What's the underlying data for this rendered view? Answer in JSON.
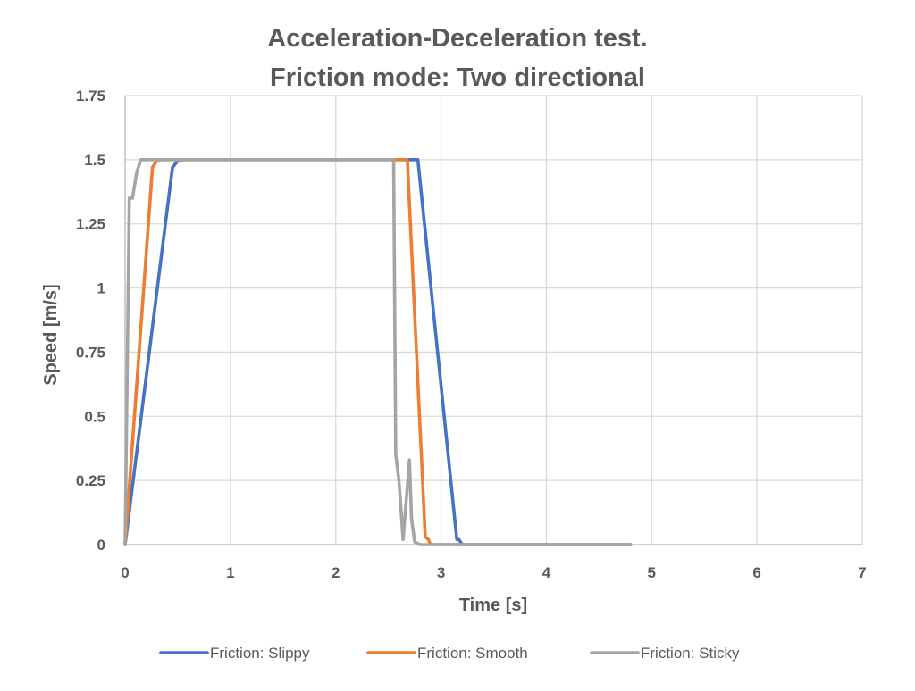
{
  "chart_data": {
    "type": "line",
    "title_lines": [
      "Acceleration-Deceleration test.",
      "Friction mode: Two directional"
    ],
    "xlabel": "Time [s]",
    "ylabel": "Speed [m/s]",
    "xlim": [
      0,
      7
    ],
    "ylim": [
      0,
      1.75
    ],
    "x_ticks": [
      0,
      1,
      2,
      3,
      4,
      5,
      6,
      7
    ],
    "x_tick_labels": [
      "0",
      "1",
      "2",
      "3",
      "4",
      "5",
      "6",
      "7"
    ],
    "y_ticks": [
      0,
      0.25,
      0.5,
      0.75,
      1,
      1.25,
      1.5,
      1.75
    ],
    "y_tick_labels": [
      "0",
      "0.25",
      "0.5",
      "0.75",
      "1",
      "1.25",
      "1.5",
      "1.75"
    ],
    "grid": true,
    "legend_position": "bottom",
    "series": [
      {
        "name": "Friction: Slippy",
        "color": "#4472C4",
        "points": [
          [
            0,
            0
          ],
          [
            0.45,
            1.47
          ],
          [
            0.5,
            1.495
          ],
          [
            0.55,
            1.5
          ],
          [
            2.78,
            1.5
          ],
          [
            3.15,
            0.02
          ],
          [
            3.17,
            0.02
          ],
          [
            3.2,
            0
          ],
          [
            4.8,
            0
          ]
        ]
      },
      {
        "name": "Friction: Smooth",
        "color": "#ED7D31",
        "points": [
          [
            0,
            0
          ],
          [
            0.26,
            1.47
          ],
          [
            0.3,
            1.495
          ],
          [
            0.33,
            1.5
          ],
          [
            2.68,
            1.5
          ],
          [
            2.85,
            0.03
          ],
          [
            2.88,
            0.02
          ],
          [
            2.9,
            0
          ],
          [
            4.8,
            0
          ]
        ]
      },
      {
        "name": "Friction: Sticky",
        "color": "#A5A5A5",
        "points": [
          [
            0,
            0
          ],
          [
            0.04,
            1.35
          ],
          [
            0.07,
            1.35
          ],
          [
            0.11,
            1.45
          ],
          [
            0.15,
            1.5
          ],
          [
            2.55,
            1.5
          ],
          [
            2.57,
            0.35
          ],
          [
            2.6,
            0.25
          ],
          [
            2.64,
            0.02
          ],
          [
            2.7,
            0.33
          ],
          [
            2.72,
            0.1
          ],
          [
            2.75,
            0.01
          ],
          [
            2.8,
            0
          ],
          [
            4.8,
            0
          ]
        ]
      }
    ]
  }
}
